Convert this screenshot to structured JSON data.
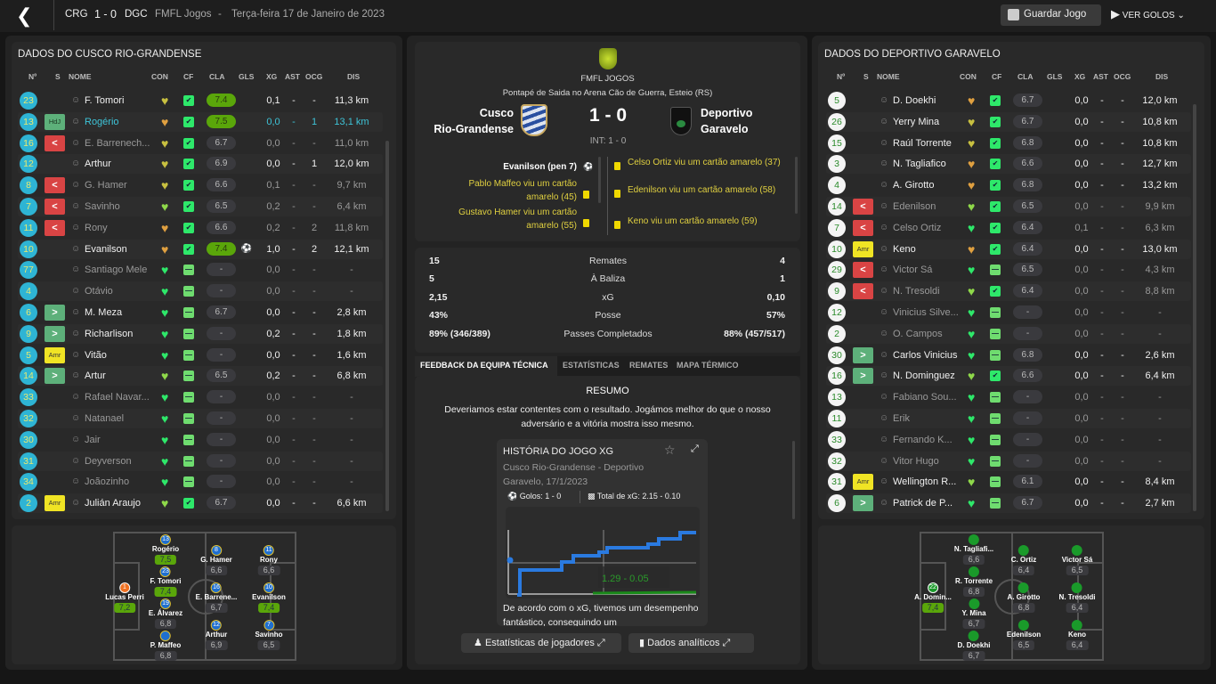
{
  "header": {
    "home_abbr": "CRG",
    "score": "1 - 0",
    "away_abbr": "DGC",
    "competition": "FMFL Jogos",
    "separator": "-",
    "date": "Terça-feira 17 de Janeiro de 2023",
    "save_label": "Guardar Jogo",
    "goals_label": "VER GOLOS"
  },
  "columns": {
    "num": "Nº",
    "s": "S",
    "name": "NOME",
    "con": "CON",
    "cf": "CF",
    "cla": "CLA",
    "gls": "GLS",
    "xg": "XG",
    "ast": "AST",
    "ocg": "OCG",
    "dis": "DIS"
  },
  "colors": {
    "con_yellow": "#c8c040",
    "con_orange": "#e0a040",
    "con_lightgreen": "#8fd94a",
    "con_green": "#2ee86a"
  },
  "home": {
    "title": "DADOS DO CUSCO RIO-GRANDENSE",
    "players": [
      {
        "num": "23",
        "sub": "none",
        "name": "F. Tomori",
        "con": "yellow",
        "cf": "thumb",
        "cla": "7.4",
        "gls": "",
        "xg": "0,1",
        "ast": "-",
        "ocg": "-",
        "dis": "11,3 km",
        "state": ""
      },
      {
        "num": "13",
        "sub": "hdj",
        "sub_label": "HdJ",
        "name": "Rogério",
        "con": "orange",
        "cf": "thumb",
        "cla": "7.5",
        "gls": "",
        "xg": "0,0",
        "ast": "-",
        "ocg": "1",
        "dis": "13,1 km",
        "state": "hl"
      },
      {
        "num": "16",
        "sub": "off",
        "name": "E. Barrenech...",
        "con": "yellow",
        "cf": "thumb",
        "cla": "6.7",
        "gls": "",
        "xg": "0,0",
        "ast": "-",
        "ocg": "-",
        "dis": "11,0 km",
        "state": "dim"
      },
      {
        "num": "12",
        "sub": "none",
        "name": "Arthur",
        "con": "yellow",
        "cf": "thumb",
        "cla": "6.9",
        "gls": "",
        "xg": "0,0",
        "ast": "-",
        "ocg": "1",
        "dis": "12,0 km",
        "state": ""
      },
      {
        "num": "8",
        "sub": "off",
        "name": "G. Hamer",
        "con": "yellow",
        "cf": "thumb",
        "cla": "6.6",
        "gls": "",
        "xg": "0,1",
        "ast": "-",
        "ocg": "-",
        "dis": "9,7 km",
        "state": "dim"
      },
      {
        "num": "7",
        "sub": "off",
        "name": "Savinho",
        "con": "lightgreen",
        "cf": "thumb",
        "cla": "6.5",
        "gls": "",
        "xg": "0,2",
        "ast": "-",
        "ocg": "-",
        "dis": "6,4 km",
        "state": "dim"
      },
      {
        "num": "11",
        "sub": "off",
        "name": "Rony",
        "con": "orange",
        "cf": "thumb",
        "cla": "6.6",
        "gls": "",
        "xg": "0,2",
        "ast": "-",
        "ocg": "2",
        "dis": "11,8 km",
        "state": "dim"
      },
      {
        "num": "10",
        "sub": "none",
        "name": "Evanilson",
        "con": "orange",
        "cf": "thumb",
        "cla": "7.4",
        "gls": "⚽",
        "xg": "1,0",
        "ast": "-",
        "ocg": "2",
        "dis": "12,1 km",
        "state": ""
      },
      {
        "num": "77",
        "sub": "none",
        "name": "Santiago Mele",
        "con": "green",
        "cf": "dash",
        "cla": "-",
        "gls": "",
        "xg": "0,0",
        "ast": "-",
        "ocg": "-",
        "dis": "-",
        "state": "dim"
      },
      {
        "num": "4",
        "sub": "none",
        "name": "Otávio",
        "con": "green",
        "cf": "dash",
        "cla": "-",
        "gls": "",
        "xg": "0,0",
        "ast": "-",
        "ocg": "-",
        "dis": "-",
        "state": "dim"
      },
      {
        "num": "6",
        "sub": "on",
        "name": "M. Meza",
        "con": "green",
        "cf": "dash",
        "cla": "6.7",
        "gls": "",
        "xg": "0,0",
        "ast": "-",
        "ocg": "-",
        "dis": "2,8 km",
        "state": ""
      },
      {
        "num": "9",
        "sub": "on",
        "name": "Richarlison",
        "con": "green",
        "cf": "dash",
        "cla": "-",
        "gls": "",
        "xg": "0,2",
        "ast": "-",
        "ocg": "-",
        "dis": "1,8 km",
        "state": ""
      },
      {
        "num": "5",
        "sub": "amr",
        "sub_label": "Amr",
        "name": "Vitão",
        "con": "green",
        "cf": "dash",
        "cla": "-",
        "gls": "",
        "xg": "0,0",
        "ast": "-",
        "ocg": "-",
        "dis": "1,6 km",
        "state": ""
      },
      {
        "num": "14",
        "sub": "on",
        "name": "Artur",
        "con": "lightgreen",
        "cf": "dash",
        "cla": "6.5",
        "gls": "",
        "xg": "0,2",
        "ast": "-",
        "ocg": "-",
        "dis": "6,8 km",
        "state": ""
      },
      {
        "num": "33",
        "sub": "none",
        "name": "Rafael Navar...",
        "con": "green",
        "cf": "dash",
        "cla": "-",
        "gls": "",
        "xg": "0,0",
        "ast": "-",
        "ocg": "-",
        "dis": "-",
        "state": "dim"
      },
      {
        "num": "32",
        "sub": "none",
        "name": "Natanael",
        "con": "green",
        "cf": "dash",
        "cla": "-",
        "gls": "",
        "xg": "0,0",
        "ast": "-",
        "ocg": "-",
        "dis": "-",
        "state": "dim"
      },
      {
        "num": "30",
        "sub": "none",
        "name": "Jair",
        "con": "green",
        "cf": "dash",
        "cla": "-",
        "gls": "",
        "xg": "0,0",
        "ast": "-",
        "ocg": "-",
        "dis": "-",
        "state": "dim"
      },
      {
        "num": "31",
        "sub": "none",
        "name": "Deyverson",
        "con": "green",
        "cf": "dash",
        "cla": "-",
        "gls": "",
        "xg": "0,0",
        "ast": "-",
        "ocg": "-",
        "dis": "-",
        "state": "dim"
      },
      {
        "num": "34",
        "sub": "none",
        "name": "Joãozinho",
        "con": "green",
        "cf": "dash",
        "cla": "-",
        "gls": "",
        "xg": "0,0",
        "ast": "-",
        "ocg": "-",
        "dis": "-",
        "state": "dim"
      },
      {
        "num": "2",
        "sub": "amr",
        "sub_label": "Amr",
        "name": "Julián Araujo",
        "con": "lightgreen",
        "cf": "thumb",
        "cla": "6.7",
        "gls": "",
        "xg": "0,0",
        "ast": "-",
        "ocg": "-",
        "dis": "6,6 km",
        "state": ""
      }
    ],
    "pitch": [
      {
        "num": "13",
        "name": "Rogério",
        "rating": "7,5",
        "good": true
      },
      {
        "num": "11",
        "name": "Rony",
        "rating": "6,6"
      },
      {
        "num": "23",
        "name": "F. Tomori",
        "rating": "7,4",
        "good": true
      },
      {
        "num": "8",
        "name": "G. Hamer",
        "rating": "6,6"
      },
      {
        "num": "1",
        "name": "Lucas Perri",
        "rating": "7,2",
        "good": true,
        "gk": true
      },
      {
        "num": "16",
        "name": "E. Barrene...",
        "rating": "6,7"
      },
      {
        "num": "10",
        "name": "Evanilson",
        "rating": "7,4",
        "good": true
      },
      {
        "num": "19",
        "name": "E. Álvarez",
        "rating": "6,8"
      },
      {
        "num": "12",
        "name": "Arthur",
        "rating": "6,9"
      },
      {
        "num": "",
        "name": "P. Maffeo",
        "rating": "6,8"
      },
      {
        "num": "7",
        "name": "Savinho",
        "rating": "6,5"
      }
    ]
  },
  "away": {
    "title": "DADOS DO DEPORTIVO GARAVELO",
    "players": [
      {
        "num": "5",
        "sub": "none",
        "name": "D. Doekhi",
        "con": "orange",
        "cf": "thumb",
        "cla": "6.7",
        "gls": "",
        "xg": "0,0",
        "ast": "-",
        "ocg": "-",
        "dis": "12,0 km",
        "state": ""
      },
      {
        "num": "26",
        "sub": "none",
        "name": "Yerry Mina",
        "con": "yellow",
        "cf": "thumb",
        "cla": "6.7",
        "gls": "",
        "xg": "0,0",
        "ast": "-",
        "ocg": "-",
        "dis": "10,8 km",
        "state": ""
      },
      {
        "num": "15",
        "sub": "none",
        "name": "Raúl Torrente",
        "con": "yellow",
        "cf": "thumb",
        "cla": "6.8",
        "gls": "",
        "xg": "0,0",
        "ast": "-",
        "ocg": "-",
        "dis": "10,8 km",
        "state": ""
      },
      {
        "num": "3",
        "sub": "none",
        "name": "N. Tagliafico",
        "con": "orange",
        "cf": "thumb",
        "cla": "6.6",
        "gls": "",
        "xg": "0,0",
        "ast": "-",
        "ocg": "-",
        "dis": "12,7 km",
        "state": ""
      },
      {
        "num": "4",
        "sub": "none",
        "name": "A. Girotto",
        "con": "orange",
        "cf": "thumb",
        "cla": "6.8",
        "gls": "",
        "xg": "0,0",
        "ast": "-",
        "ocg": "-",
        "dis": "13,2 km",
        "state": ""
      },
      {
        "num": "14",
        "sub": "off",
        "name": "Edenilson",
        "con": "lightgreen",
        "cf": "thumb",
        "cla": "6.5",
        "gls": "",
        "xg": "0,0",
        "ast": "-",
        "ocg": "-",
        "dis": "9,9 km",
        "state": "dim"
      },
      {
        "num": "7",
        "sub": "off",
        "name": "Celso Ortiz",
        "con": "green",
        "cf": "thumb",
        "cla": "6.4",
        "gls": "",
        "xg": "0,1",
        "ast": "-",
        "ocg": "-",
        "dis": "6,3 km",
        "state": "dim"
      },
      {
        "num": "10",
        "sub": "amr",
        "sub_label": "Amr",
        "name": "Keno",
        "con": "orange",
        "cf": "thumb",
        "cla": "6.4",
        "gls": "",
        "xg": "0,0",
        "ast": "-",
        "ocg": "-",
        "dis": "13,0 km",
        "state": ""
      },
      {
        "num": "29",
        "sub": "off",
        "name": "Victor Sá",
        "con": "green",
        "cf": "dash",
        "cla": "6.5",
        "gls": "",
        "xg": "0,0",
        "ast": "-",
        "ocg": "-",
        "dis": "4,3 km",
        "state": "dim"
      },
      {
        "num": "9",
        "sub": "off",
        "name": "N. Tresoldi",
        "con": "lightgreen",
        "cf": "thumb",
        "cla": "6.4",
        "gls": "",
        "xg": "0,0",
        "ast": "-",
        "ocg": "-",
        "dis": "8,8 km",
        "state": "dim"
      },
      {
        "num": "12",
        "sub": "none",
        "name": "Vinicius Silve...",
        "con": "green",
        "cf": "dash",
        "cla": "-",
        "gls": "",
        "xg": "0,0",
        "ast": "-",
        "ocg": "-",
        "dis": "-",
        "state": "dim"
      },
      {
        "num": "2",
        "sub": "none",
        "name": "O. Campos",
        "con": "green",
        "cf": "dash",
        "cla": "-",
        "gls": "",
        "xg": "0,0",
        "ast": "-",
        "ocg": "-",
        "dis": "-",
        "state": "dim"
      },
      {
        "num": "30",
        "sub": "on",
        "name": "Carlos Vinicius",
        "con": "green",
        "cf": "dash",
        "cla": "6.8",
        "gls": "",
        "xg": "0,0",
        "ast": "-",
        "ocg": "-",
        "dis": "2,6 km",
        "state": ""
      },
      {
        "num": "16",
        "sub": "on",
        "name": "N. Dominguez",
        "con": "lightgreen",
        "cf": "thumb",
        "cla": "6.6",
        "gls": "",
        "xg": "0,0",
        "ast": "-",
        "ocg": "-",
        "dis": "6,4 km",
        "state": ""
      },
      {
        "num": "13",
        "sub": "none",
        "name": "Fabiano Sou...",
        "con": "green",
        "cf": "dash",
        "cla": "-",
        "gls": "",
        "xg": "0,0",
        "ast": "-",
        "ocg": "-",
        "dis": "-",
        "state": "dim"
      },
      {
        "num": "11",
        "sub": "none",
        "name": "Erik",
        "con": "green",
        "cf": "dash",
        "cla": "-",
        "gls": "",
        "xg": "0,0",
        "ast": "-",
        "ocg": "-",
        "dis": "-",
        "state": "dim"
      },
      {
        "num": "33",
        "sub": "none",
        "name": "Fernando K...",
        "con": "green",
        "cf": "dash",
        "cla": "-",
        "gls": "",
        "xg": "0,0",
        "ast": "-",
        "ocg": "-",
        "dis": "-",
        "state": "dim"
      },
      {
        "num": "32",
        "sub": "none",
        "name": "Vitor Hugo",
        "con": "green",
        "cf": "dash",
        "cla": "-",
        "gls": "",
        "xg": "0,0",
        "ast": "-",
        "ocg": "-",
        "dis": "-",
        "state": "dim"
      },
      {
        "num": "31",
        "sub": "amr",
        "sub_label": "Amr",
        "name": "Wellington R...",
        "con": "lightgreen",
        "cf": "dash",
        "cla": "6.1",
        "gls": "",
        "xg": "0,0",
        "ast": "-",
        "ocg": "-",
        "dis": "8,4 km",
        "state": ""
      },
      {
        "num": "6",
        "sub": "on",
        "name": "Patrick de P...",
        "con": "green",
        "cf": "dash",
        "cla": "6.7",
        "gls": "",
        "xg": "0,0",
        "ast": "-",
        "ocg": "-",
        "dis": "2,7 km",
        "state": ""
      }
    ],
    "pitch": [
      {
        "num": "",
        "name": "N. Tagliafi...",
        "rating": "6,6"
      },
      {
        "num": "",
        "name": "Victor Sá",
        "rating": "6,5"
      },
      {
        "num": "",
        "name": "R. Torrente",
        "rating": "6,8"
      },
      {
        "num": "",
        "name": "C. Ortiz",
        "rating": "6,4"
      },
      {
        "num": "22",
        "name": "A. Domin...",
        "rating": "7,4",
        "good": true,
        "gk": true
      },
      {
        "num": "",
        "name": "A. Girotto",
        "rating": "6,8"
      },
      {
        "num": "",
        "name": "N. Tresoldi",
        "rating": "6,4"
      },
      {
        "num": "",
        "name": "Y. Mina",
        "rating": "6,7"
      },
      {
        "num": "",
        "name": "Edenilson",
        "rating": "6,5"
      },
      {
        "num": "",
        "name": "D. Doekhi",
        "rating": "6,7"
      },
      {
        "num": "",
        "name": "Keno",
        "rating": "6,4"
      }
    ]
  },
  "match": {
    "competition": "FMFL JOGOS",
    "venue": "Pontapé de Saida no Arena Cão de Guerra, Esteio (RS)",
    "home_name_1": "Cusco",
    "home_name_2": "Rio-Grandense",
    "away_name_1": "Deportivo",
    "away_name_2": "Garavelo",
    "score": "1 - 0",
    "halftime": "INT: 1 - 0",
    "home_events": [
      {
        "text": "Evanilson (pen 7)",
        "type": "goal"
      },
      {
        "text": "Pablo Maffeo viu um cartão amarelo (45)",
        "type": "yellow"
      },
      {
        "text": "Gustavo Hamer viu um cartão amarelo (55)",
        "type": "yellow"
      }
    ],
    "away_events": [
      {
        "text": "Celso Ortiz viu um cartão amarelo (37)",
        "type": "yellow"
      },
      {
        "text": "Edenilson viu um cartão amarelo (58)",
        "type": "yellow"
      },
      {
        "text": "Keno viu um cartão amarelo (59)",
        "type": "yellow"
      }
    ]
  },
  "stats": [
    {
      "home": "15",
      "label": "Remates",
      "away": "4"
    },
    {
      "home": "5",
      "label": "À Baliza",
      "away": "1"
    },
    {
      "home": "2,15",
      "label": "xG",
      "away": "0,10"
    },
    {
      "home": "43%",
      "label": "Posse",
      "away": "57%"
    },
    {
      "home": "89% (346/389)",
      "label": "Passes Completados",
      "away": "88% (457/517)"
    }
  ],
  "tabs": [
    "FEEDBACK DA EQUIPA TÉCNICA",
    "ESTATÍSTICAS",
    "REMATES",
    "MAPA TÉRMICO"
  ],
  "feedback": {
    "heading": "RESUMO",
    "text": "Deveriamos estar contentes com o resultado. Jogámos melhor do que o nosso adversário e a vitória mostra isso mesmo.",
    "xg_card": {
      "title": "HISTÓRIA DO JOGO XG",
      "subtitle": "Cusco Rio-Grandense - Deportivo Garavelo, 17/1/2023",
      "goals": "Golos: 1 - 0",
      "total_xg": "Total de xG: 2.15 - 0.10",
      "tooltip": "1.29 - 0.05",
      "text": "De acordo com o xG, tivemos um desempenho fantástico, conseguindo um"
    }
  },
  "footer": {
    "player_stats": "Estatísticas de jogadores",
    "analytics": "Dados analíticos"
  }
}
